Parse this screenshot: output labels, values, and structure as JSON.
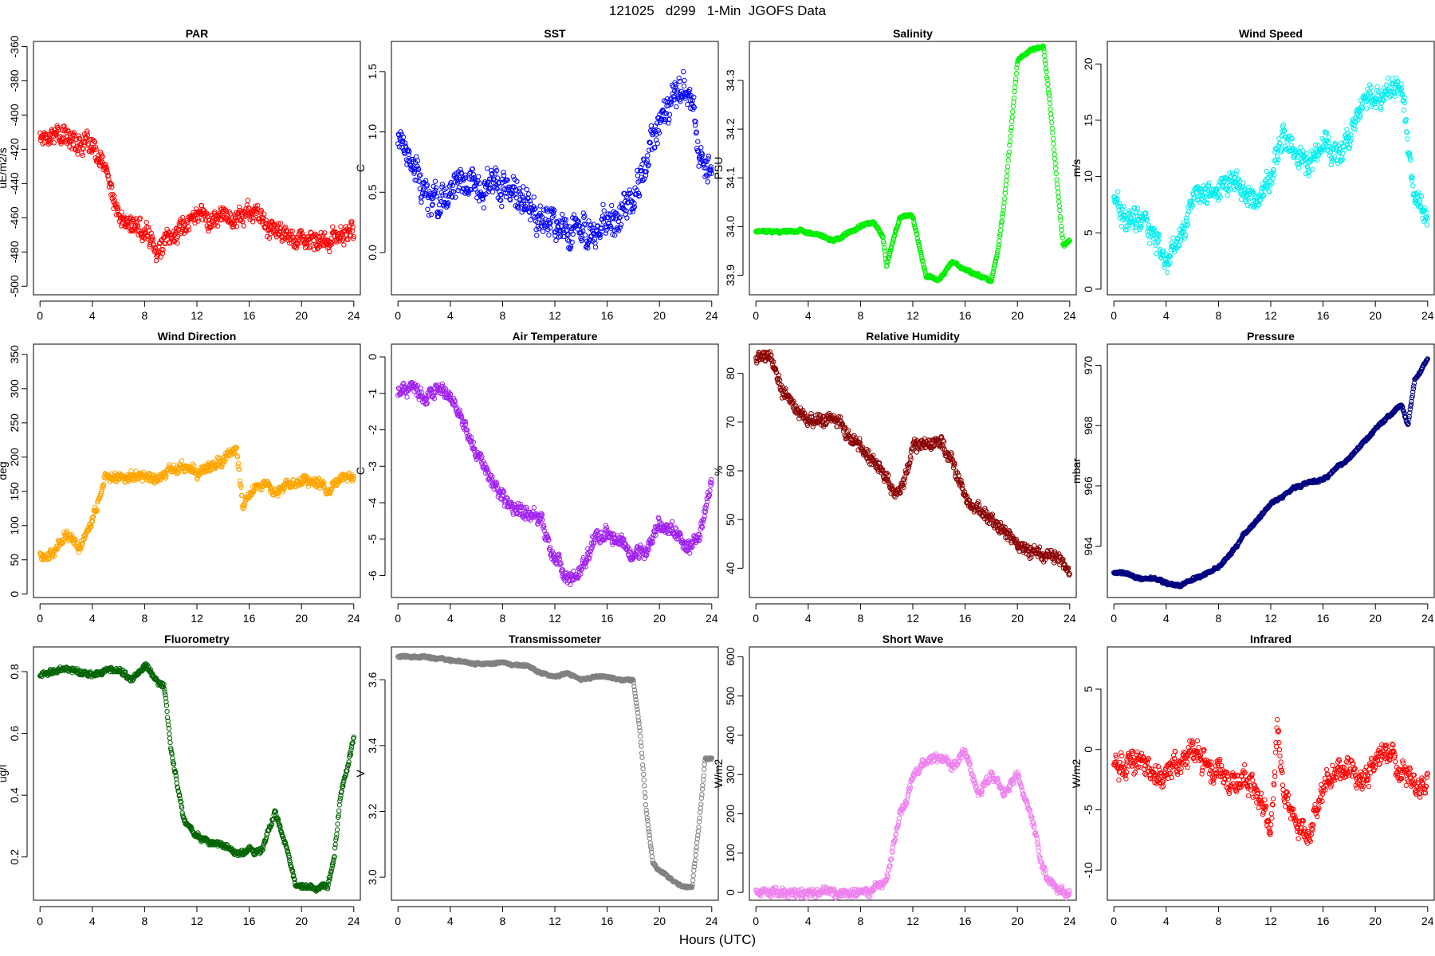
{
  "figure": {
    "title": "121025   d299   1-Min  JGOFS Data",
    "xlabel": "Hours (UTC)"
  },
  "chart_data": [
    {
      "type": "scatter",
      "title": "PAR",
      "ylabel": "uE/m2/s",
      "color": "#ff0000",
      "xticks": [
        0,
        4,
        8,
        12,
        16,
        20,
        24
      ],
      "yticks": [
        -500,
        -480,
        -460,
        -440,
        -420,
        -400,
        -380,
        -360
      ],
      "yticklabels": [
        "-500",
        "-480",
        "-460",
        "-440",
        "-420",
        "-400",
        "-380",
        "-360"
      ],
      "yrotate": true,
      "xlim": [
        -0.5,
        24.5
      ],
      "ylim": [
        -505,
        -357
      ],
      "noise": 9,
      "x": [
        0,
        1,
        2,
        3,
        4,
        5,
        6,
        7,
        8,
        9,
        10,
        11,
        12,
        13,
        14,
        15,
        16,
        17,
        18,
        19,
        20,
        21,
        22,
        23,
        24
      ],
      "y": [
        -412,
        -410,
        -413,
        -415,
        -420,
        -432,
        -460,
        -465,
        -468,
        -478,
        -472,
        -465,
        -455,
        -462,
        -458,
        -460,
        -456,
        -462,
        -468,
        -472,
        -470,
        -476,
        -474,
        -470,
        -468
      ]
    },
    {
      "type": "scatter",
      "title": "SST",
      "ylabel": "C",
      "color": "#0000ff",
      "xticks": [
        0,
        4,
        8,
        12,
        16,
        20,
        24
      ],
      "yticks": [
        0,
        0.5,
        1,
        1.5
      ],
      "yticklabels": [
        "0.0",
        "0.5",
        "1.0",
        "1.5"
      ],
      "yrotate": true,
      "xlim": [
        -0.5,
        24.5
      ],
      "ylim": [
        -0.35,
        1.75
      ],
      "noise": 0.22,
      "x": [
        0,
        1,
        2,
        3,
        4,
        5,
        6,
        7,
        8,
        9,
        10,
        11,
        12,
        13,
        14,
        15,
        16,
        17,
        18,
        19,
        20,
        21,
        22,
        23,
        24
      ],
      "y": [
        1.0,
        0.8,
        0.5,
        0.4,
        0.5,
        0.55,
        0.6,
        0.6,
        0.55,
        0.45,
        0.35,
        0.3,
        0.25,
        0.2,
        0.25,
        0.15,
        0.2,
        0.3,
        0.5,
        0.7,
        1.1,
        1.3,
        1.4,
        0.9,
        0.7
      ]
    },
    {
      "type": "scatter",
      "title": "Salinity",
      "ylabel": "PSU",
      "color": "#00ee00",
      "xticks": [
        0,
        4,
        8,
        12,
        16,
        20,
        24
      ],
      "yticks": [
        33.9,
        34,
        34.1,
        34.2,
        34.3
      ],
      "yticklabels": [
        "33.9",
        "34.0",
        "34.1",
        "34.2",
        "34.3"
      ],
      "yrotate": true,
      "xlim": [
        -0.5,
        24.5
      ],
      "ylim": [
        33.86,
        34.38
      ],
      "noise": 0.005,
      "x": [
        0,
        2,
        4,
        5,
        6,
        8,
        9,
        9.7,
        10,
        11,
        12,
        13,
        14,
        15,
        16,
        17,
        18,
        18.5,
        19,
        20,
        21,
        22,
        22.5,
        23,
        23.5,
        24
      ],
      "y": [
        33.99,
        33.99,
        33.99,
        33.98,
        33.97,
        34.0,
        34.01,
        33.98,
        33.92,
        34.02,
        34.02,
        33.9,
        33.89,
        33.93,
        33.91,
        33.9,
        33.89,
        33.95,
        34.05,
        34.34,
        34.36,
        34.37,
        34.25,
        34.1,
        33.96,
        33.97
      ]
    },
    {
      "type": "scatter",
      "title": "Wind Speed",
      "ylabel": "m/s",
      "color": "#00eeee",
      "xticks": [
        0,
        4,
        8,
        12,
        16,
        20,
        24
      ],
      "yticks": [
        0,
        5,
        10,
        15,
        20
      ],
      "yticklabels": [
        "0",
        "5",
        "10",
        "15",
        "20"
      ],
      "yrotate": true,
      "xlim": [
        -0.5,
        24.5
      ],
      "ylim": [
        -0.5,
        22
      ],
      "noise": 1.6,
      "x": [
        0,
        1,
        2,
        3,
        4,
        5,
        6,
        7,
        8,
        9,
        10,
        11,
        12,
        13,
        14,
        15,
        16,
        17,
        18,
        19,
        20,
        21,
        22,
        23,
        24
      ],
      "y": [
        8,
        6,
        6,
        5,
        2,
        5,
        8,
        9,
        9,
        10,
        9,
        8,
        10,
        14,
        12,
        11,
        13,
        12,
        13,
        17,
        17,
        18,
        18,
        8,
        6
      ]
    },
    {
      "type": "scatter",
      "title": "Wind Direction",
      "ylabel": "deg",
      "color": "#ffa500",
      "xticks": [
        0,
        4,
        8,
        12,
        16,
        20,
        24
      ],
      "yticks": [
        0,
        50,
        100,
        150,
        200,
        250,
        300,
        350
      ],
      "yticklabels": [
        "0",
        "50",
        "100",
        "150",
        "200",
        "250",
        "300",
        "350"
      ],
      "yrotate": true,
      "xlim": [
        -0.5,
        24.5
      ],
      "ylim": [
        -5,
        365
      ],
      "noise": 12,
      "x": [
        0,
        1,
        2,
        3,
        4,
        5,
        6,
        7,
        8,
        9,
        10,
        11,
        12,
        13,
        14,
        15,
        15.5,
        16,
        17,
        18,
        19,
        20,
        21,
        22,
        23,
        24
      ],
      "y": [
        55,
        60,
        90,
        70,
        110,
        170,
        170,
        175,
        172,
        170,
        180,
        185,
        175,
        185,
        195,
        215,
        130,
        145,
        160,
        150,
        165,
        165,
        160,
        155,
        170,
        170
      ]
    },
    {
      "type": "scatter",
      "title": "Air Temperature",
      "ylabel": "C",
      "color": "#a020f0",
      "xticks": [
        0,
        4,
        8,
        12,
        16,
        20,
        24
      ],
      "yticks": [
        -6,
        -5,
        -4,
        -3,
        -2,
        -1,
        0
      ],
      "yticklabels": [
        "-6",
        "-5",
        "-4",
        "-3",
        "-2",
        "-1",
        "0"
      ],
      "yrotate": true,
      "xlim": [
        -0.5,
        24.5
      ],
      "ylim": [
        -6.6,
        0.35
      ],
      "noise": 0.3,
      "x": [
        0,
        1,
        2,
        3,
        4,
        5,
        6,
        7,
        8,
        9,
        10,
        11,
        12,
        13,
        14,
        15,
        16,
        17,
        18,
        19,
        20,
        21,
        22,
        23,
        24
      ],
      "y": [
        -1.0,
        -0.8,
        -1.1,
        -0.9,
        -1.1,
        -1.8,
        -2.6,
        -3.2,
        -3.8,
        -4.2,
        -4.3,
        -4.5,
        -5.5,
        -6.1,
        -5.9,
        -5.0,
        -4.8,
        -5.0,
        -5.5,
        -5.3,
        -4.5,
        -4.8,
        -5.3,
        -5.0,
        -3.5
      ]
    },
    {
      "type": "scatter",
      "title": "Relative Humidity",
      "ylabel": "%",
      "color": "#8b0000",
      "xticks": [
        0,
        4,
        8,
        12,
        16,
        20,
        24
      ],
      "yticks": [
        40,
        50,
        60,
        70,
        80
      ],
      "yticklabels": [
        "40",
        "50",
        "60",
        "70",
        "80"
      ],
      "yrotate": true,
      "xlim": [
        -0.5,
        24.5
      ],
      "ylim": [
        34,
        86
      ],
      "noise": 2.2,
      "x": [
        0,
        1,
        2,
        3,
        4,
        5,
        6,
        7,
        8,
        9,
        10,
        11,
        12,
        13,
        14,
        15,
        16,
        17,
        18,
        19,
        20,
        21,
        22,
        23,
        24
      ],
      "y": [
        83,
        84,
        77,
        73,
        70,
        70,
        71,
        67,
        65,
        62,
        58,
        55,
        65,
        65,
        66,
        62,
        55,
        52,
        50,
        48,
        45,
        43,
        42,
        43,
        38
      ]
    },
    {
      "type": "scatter",
      "title": "Pressure",
      "ylabel": "mbar",
      "color": "#000080",
      "xticks": [
        0,
        4,
        8,
        12,
        16,
        20,
        24
      ],
      "yticks": [
        964,
        966,
        968,
        970
      ],
      "yticklabels": [
        "964",
        "966",
        "968",
        "970"
      ],
      "yrotate": true,
      "xlim": [
        -0.5,
        24.5
      ],
      "ylim": [
        962.3,
        970.7
      ],
      "noise": 0.08,
      "x": [
        0,
        1,
        2,
        3,
        4,
        5,
        6,
        7,
        8,
        9,
        10,
        11,
        12,
        13,
        14,
        15,
        16,
        17,
        18,
        19,
        20,
        21,
        22,
        22.5,
        23,
        24
      ],
      "y": [
        963.1,
        963.1,
        962.9,
        962.9,
        962.8,
        962.7,
        962.9,
        963.1,
        963.3,
        963.8,
        964.4,
        964.9,
        965.4,
        965.7,
        966.0,
        966.1,
        966.2,
        966.6,
        966.9,
        967.4,
        967.9,
        968.3,
        968.7,
        968.0,
        969.5,
        970.2
      ]
    },
    {
      "type": "scatter",
      "title": "Fluorometry",
      "ylabel": "ug/l",
      "color": "#006400",
      "xticks": [
        0,
        4,
        8,
        12,
        16,
        20,
        24
      ],
      "yticks": [
        0.2,
        0.4,
        0.6,
        0.8
      ],
      "yticklabels": [
        "0.2",
        "0.4",
        "0.6",
        "0.8"
      ],
      "yrotate": true,
      "xlim": [
        -0.5,
        24.5
      ],
      "ylim": [
        0.06,
        0.88
      ],
      "noise": 0.015,
      "x": [
        0,
        1,
        2,
        3,
        4,
        5,
        6,
        7,
        8,
        9,
        9.5,
        10,
        11,
        12,
        13,
        14,
        15,
        16,
        17,
        18,
        19,
        19.5,
        20,
        21,
        22,
        22.5,
        23,
        24
      ],
      "y": [
        0.79,
        0.8,
        0.81,
        0.8,
        0.79,
        0.8,
        0.81,
        0.77,
        0.82,
        0.77,
        0.75,
        0.55,
        0.32,
        0.27,
        0.25,
        0.24,
        0.21,
        0.22,
        0.22,
        0.35,
        0.2,
        0.12,
        0.1,
        0.1,
        0.1,
        0.2,
        0.4,
        0.58
      ]
    },
    {
      "type": "scatter",
      "title": "Transmissometer",
      "ylabel": "V",
      "color": "#808080",
      "xticks": [
        0,
        4,
        8,
        12,
        16,
        20,
        24
      ],
      "yticks": [
        3.0,
        3.2,
        3.4,
        3.6
      ],
      "yticklabels": [
        "3.0",
        "3.2",
        "3.4",
        "3.6"
      ],
      "yrotate": true,
      "xlim": [
        -0.5,
        24.5
      ],
      "ylim": [
        2.93,
        3.7
      ],
      "noise": 0.006,
      "x": [
        0,
        2,
        4,
        6,
        8,
        10,
        11,
        12,
        13,
        14,
        15,
        16,
        17,
        18,
        18.5,
        19,
        19.5,
        20,
        21,
        22,
        22.5,
        23,
        23.5,
        24
      ],
      "y": [
        3.67,
        3.67,
        3.66,
        3.65,
        3.65,
        3.64,
        3.62,
        3.61,
        3.62,
        3.6,
        3.61,
        3.61,
        3.6,
        3.6,
        3.45,
        3.2,
        3.04,
        3.02,
        2.99,
        2.97,
        2.97,
        3.15,
        3.36,
        3.36
      ]
    },
    {
      "type": "scatter",
      "title": "Short Wave",
      "ylabel": "W/m2",
      "color": "#ee82ee",
      "xticks": [
        0,
        4,
        8,
        12,
        16,
        20,
        24
      ],
      "yticks": [
        0,
        100,
        200,
        300,
        400,
        500,
        600
      ],
      "yticklabels": [
        "0",
        "100",
        "200",
        "300",
        "400",
        "500",
        "600"
      ],
      "yrotate": true,
      "xlim": [
        -0.5,
        24.5
      ],
      "ylim": [
        -20,
        625
      ],
      "noise": 18,
      "x": [
        0,
        2,
        4,
        6,
        8,
        9,
        10,
        11,
        11.5,
        12,
        13,
        14,
        15,
        16,
        17,
        18,
        19,
        20,
        21,
        22,
        23,
        24
      ],
      "y": [
        0,
        0,
        0,
        0,
        2,
        10,
        30,
        200,
        230,
        300,
        330,
        350,
        320,
        360,
        250,
        300,
        250,
        300,
        200,
        50,
        5,
        0
      ]
    },
    {
      "type": "scatter",
      "title": "Infrared",
      "ylabel": "W/m2",
      "color": "#ff0000",
      "xticks": [
        0,
        4,
        8,
        12,
        16,
        20,
        24
      ],
      "yticks": [
        -10,
        -5,
        0,
        5
      ],
      "yticklabels": [
        "-10",
        "-5",
        "0",
        "5"
      ],
      "yrotate": true,
      "xlim": [
        -0.5,
        24.5
      ],
      "ylim": [
        -12.5,
        8.5
      ],
      "noise": 1.5,
      "x": [
        0,
        1,
        2,
        3,
        4,
        5,
        6,
        7,
        8,
        9,
        10,
        11,
        12,
        12.5,
        13,
        14,
        15,
        16,
        17,
        18,
        19,
        20,
        21,
        22,
        23,
        24
      ],
      "y": [
        -1.5,
        -1.5,
        -1,
        -2,
        -2,
        -1,
        0,
        -1,
        -2,
        -3,
        -2,
        -4,
        -7,
        2,
        -4,
        -6,
        -7,
        -3,
        -2,
        -2,
        -2,
        -1,
        0,
        -2,
        -3,
        -3
      ]
    }
  ]
}
